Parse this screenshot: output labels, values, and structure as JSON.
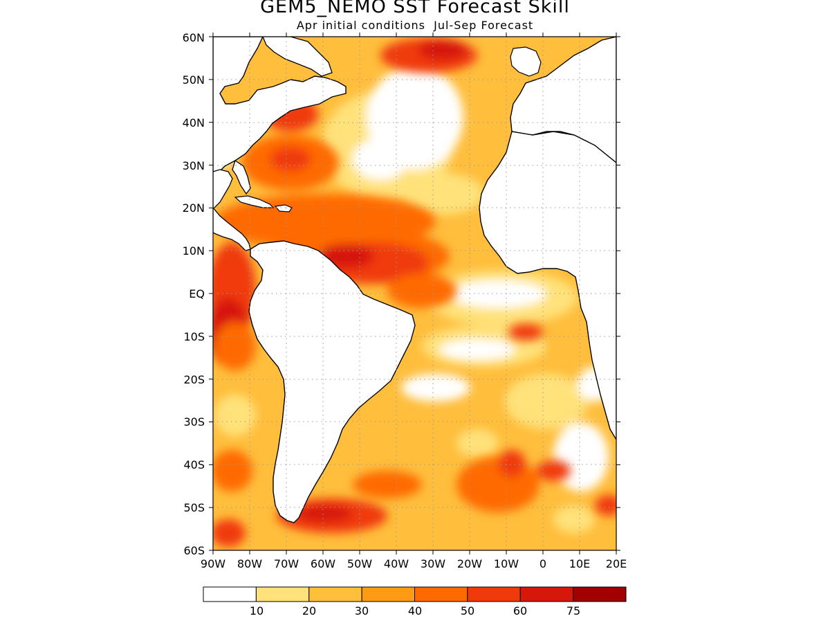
{
  "title": "GEM5_NEMO SST Forecast Skill",
  "subtitle": "Apr initial conditions  Jul-Sep Forecast",
  "map": {
    "lat_range": [
      -60,
      60
    ],
    "lon_range": [
      -90,
      20
    ],
    "lat_ticks": [
      "60N",
      "50N",
      "40N",
      "30N",
      "20N",
      "10N",
      "EQ",
      "10S",
      "20S",
      "30S",
      "40S",
      "50S",
      "60S"
    ],
    "lon_ticks": [
      "90W",
      "80W",
      "70W",
      "60W",
      "50W",
      "40W",
      "30W",
      "20W",
      "10W",
      "0",
      "10E",
      "20E"
    ],
    "grid": "dotted",
    "land_color": "#ffffff",
    "coast_color": "#000000"
  },
  "colorbar": {
    "labels": [
      "10",
      "20",
      "30",
      "40",
      "50",
      "60",
      "75"
    ],
    "colors": [
      "#ffffff",
      "#ffe27a",
      "#ffbe3c",
      "#ff9a14",
      "#ff6a00",
      "#f03a0a",
      "#d6180a",
      "#a00000"
    ]
  }
}
